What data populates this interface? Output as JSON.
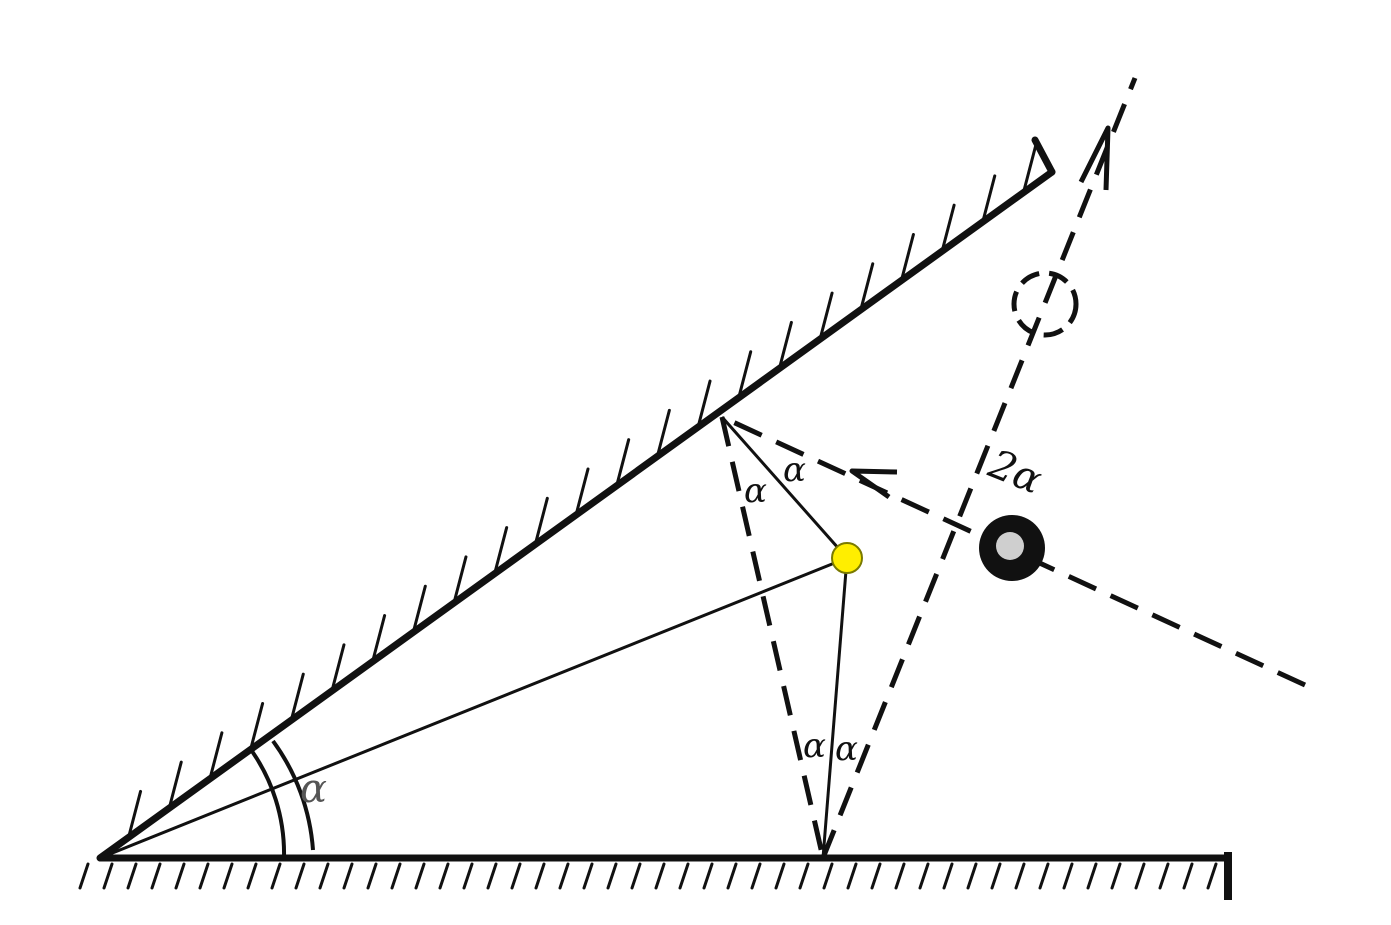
{
  "figure": {
    "description_free": true,
    "colors": {
      "ink": "#111111",
      "marker_fill": "#ffee00",
      "marker_stroke": "#7a7a00",
      "ball_fill": "#111111",
      "ball_speckle": "#cfcfcf"
    },
    "labels": {
      "vertex_angle": "α",
      "upper_left": "α",
      "upper_right": "α",
      "lower_left": "α",
      "lower_right": "α",
      "deflection": "2α"
    }
  }
}
